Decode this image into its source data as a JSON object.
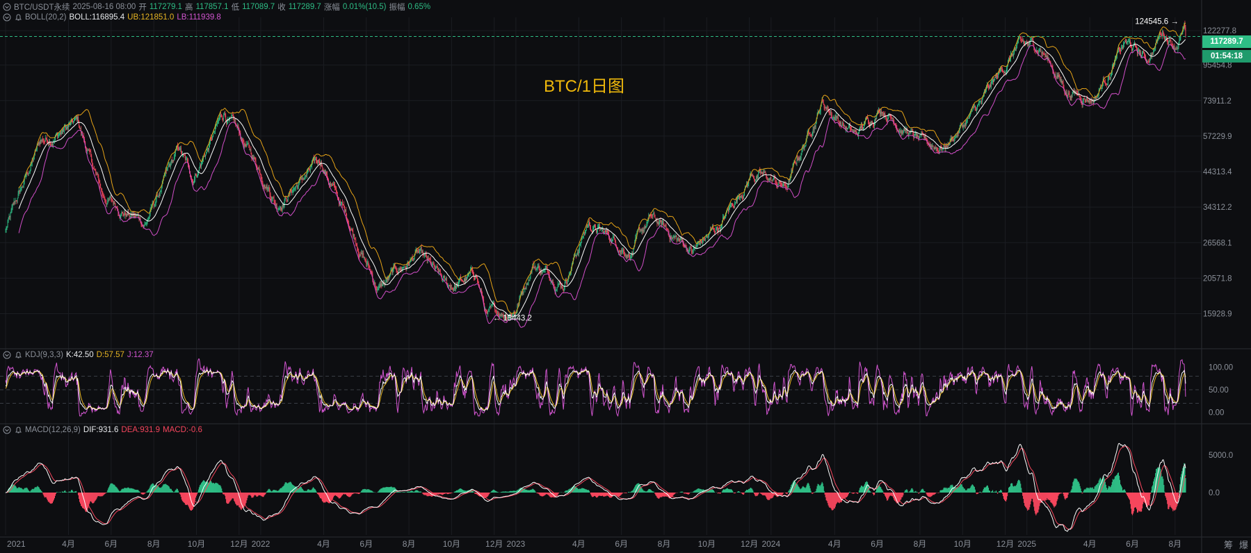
{
  "symbol": "BTC/USDT永续",
  "datetime": "2025-08-16 08:00",
  "ohlc": {
    "open_label": "开",
    "open": "117279.1",
    "high_label": "高",
    "high": "117857.1",
    "low_label": "低",
    "low": "117089.7",
    "close_label": "收",
    "close": "117289.7",
    "change_label": "涨幅",
    "change": "0.01%(10.5)",
    "amplitude_label": "振幅",
    "amplitude": "0.65%"
  },
  "indicators": {
    "boll": {
      "name": "BOLL(20,2)",
      "mid": "BOLL:116895.4",
      "ub": "UB:121851.0",
      "lb": "LB:111939.8"
    },
    "kdj": {
      "name": "KDJ(9,3,3)",
      "k": "K:42.50",
      "d": "D:57.57",
      "j": "J:12.37"
    },
    "macd": {
      "name": "MACD(12,26,9)",
      "dif": "DIF:931.6",
      "dea": "DEA:931.9",
      "macd": "MACD:-0.6"
    }
  },
  "current_price": "117289.7",
  "countdown": "01:54:18",
  "watermark": "BTC/1日图",
  "annotations": {
    "high": "124545.6",
    "low": "15443.2"
  },
  "side_labels": [
    "筹",
    "爆"
  ],
  "colors": {
    "up": "#2ebd85",
    "down": "#f6465d",
    "boll_mid": "#ffffff",
    "boll_ub": "#e6a317",
    "boll_lb": "#d24fc9",
    "watermark": "#f0b90b",
    "k": "#ffffff",
    "d": "#e6b422",
    "j": "#d255d0",
    "dif": "#ffffff",
    "dea": "#f6465d"
  },
  "chart_data": [
    {
      "type": "candlestick",
      "title": "BTC/1日图",
      "x_ticks": [
        "2021",
        "4月",
        "6月",
        "8月",
        "10月",
        "12月",
        "2022",
        "4月",
        "6月",
        "8月",
        "10月",
        "12月",
        "2023",
        "4月",
        "6月",
        "8月",
        "10月",
        "12月",
        "2024",
        "4月",
        "6月",
        "8月",
        "10月",
        "12月",
        "2025",
        "4月",
        "6月",
        "8月"
      ],
      "y_ticks": [
        "122277.8",
        "95454.8",
        "73911.2",
        "57229.9",
        "44313.4",
        "34312.2",
        "26568.1",
        "20571.8",
        "15928.9"
      ],
      "scale": "log",
      "ylim": [
        12500,
        128000
      ],
      "series": [
        {
          "name": "BOLL",
          "role": "mid"
        },
        {
          "name": "UB",
          "role": "upper"
        },
        {
          "name": "LB",
          "role": "lower"
        }
      ],
      "close_path": [
        {
          "x": "2021-01-01",
          "y": 29000
        },
        {
          "x": "2021-02-20",
          "y": 55000
        },
        {
          "x": "2021-04-14",
          "y": 63000
        },
        {
          "x": "2021-05-20",
          "y": 37000
        },
        {
          "x": "2021-07-20",
          "y": 30500
        },
        {
          "x": "2021-09-06",
          "y": 51500
        },
        {
          "x": "2021-09-25",
          "y": 42000
        },
        {
          "x": "2021-11-10",
          "y": 67500
        },
        {
          "x": "2022-01-10",
          "y": 41500
        },
        {
          "x": "2022-01-24",
          "y": 35500
        },
        {
          "x": "2022-03-28",
          "y": 47500
        },
        {
          "x": "2022-05-10",
          "y": 30000
        },
        {
          "x": "2022-06-18",
          "y": 19000
        },
        {
          "x": "2022-08-13",
          "y": 24500
        },
        {
          "x": "2022-09-25",
          "y": 19000
        },
        {
          "x": "2022-11-05",
          "y": 21000
        },
        {
          "x": "2022-11-21",
          "y": 15600
        },
        {
          "x": "2022-12-31",
          "y": 16500
        },
        {
          "x": "2023-01-25",
          "y": 23000
        },
        {
          "x": "2023-03-10",
          "y": 20000
        },
        {
          "x": "2023-04-14",
          "y": 30500
        },
        {
          "x": "2023-06-15",
          "y": 25000
        },
        {
          "x": "2023-07-13",
          "y": 31500
        },
        {
          "x": "2023-09-11",
          "y": 25000
        },
        {
          "x": "2023-10-20",
          "y": 30000
        },
        {
          "x": "2023-12-05",
          "y": 44000
        },
        {
          "x": "2024-01-23",
          "y": 39500
        },
        {
          "x": "2024-03-14",
          "y": 73500
        },
        {
          "x": "2024-05-01",
          "y": 57000
        },
        {
          "x": "2024-06-07",
          "y": 71500
        },
        {
          "x": "2024-08-05",
          "y": 53500
        },
        {
          "x": "2024-09-06",
          "y": 53500
        },
        {
          "x": "2024-10-29",
          "y": 72500
        },
        {
          "x": "2024-12-17",
          "y": 108000
        },
        {
          "x": "2025-01-20",
          "y": 109000
        },
        {
          "x": "2025-02-28",
          "y": 79000
        },
        {
          "x": "2025-04-07",
          "y": 76000
        },
        {
          "x": "2025-05-22",
          "y": 111000
        },
        {
          "x": "2025-06-22",
          "y": 99000
        },
        {
          "x": "2025-07-14",
          "y": 122000
        },
        {
          "x": "2025-08-02",
          "y": 112000
        },
        {
          "x": "2025-08-14",
          "y": 124500
        },
        {
          "x": "2025-08-16",
          "y": 117289.7
        }
      ],
      "high_marker": {
        "date": "2025-08-14",
        "value": 124545.6
      },
      "low_marker": {
        "date": "2022-11-21",
        "value": 15443.2
      },
      "last_price": 117289.7
    },
    {
      "type": "line",
      "title": "KDJ(9,3,3)",
      "y_ticks": [
        "100.00",
        "50.00",
        "0.00"
      ],
      "ylim": [
        -10,
        110
      ],
      "series": [
        {
          "name": "K",
          "last": 42.5
        },
        {
          "name": "D",
          "last": 57.57
        },
        {
          "name": "J",
          "last": 12.37
        }
      ]
    },
    {
      "type": "bar",
      "title": "MACD(12,26,9)",
      "y_ticks": [
        "5000.0",
        "0.0"
      ],
      "series": [
        {
          "name": "DIF",
          "last": 931.6
        },
        {
          "name": "DEA",
          "last": 931.9
        },
        {
          "name": "MACD",
          "last": -0.6
        }
      ]
    }
  ]
}
